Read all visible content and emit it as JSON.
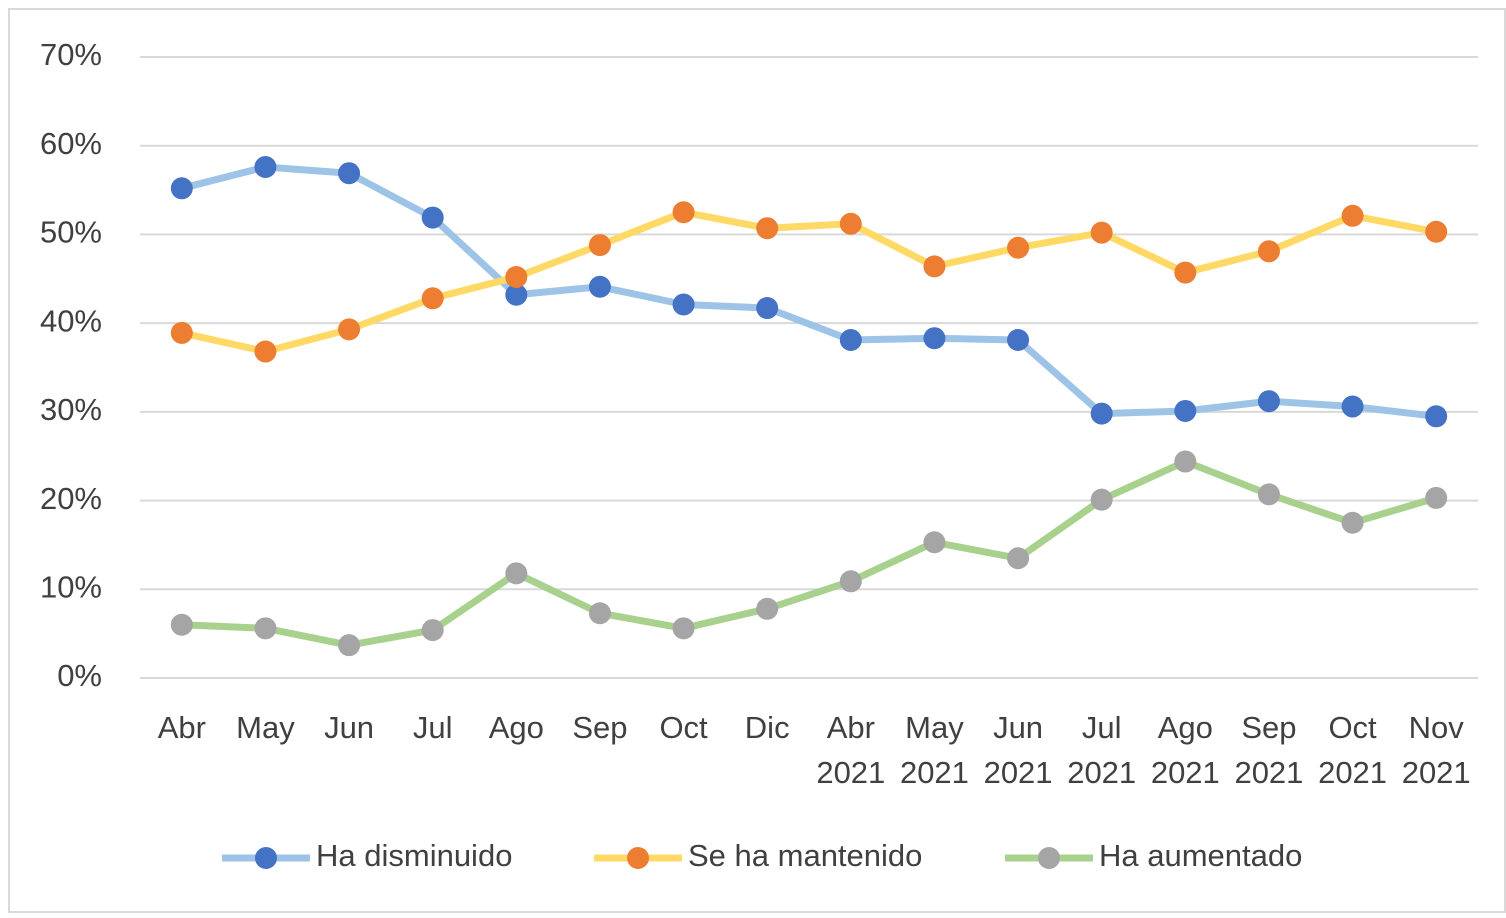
{
  "chart_data": {
    "type": "line",
    "categories": [
      "Abr",
      "May",
      "Jun",
      "Jul",
      "Ago",
      "Sep",
      "Oct",
      "Dic",
      "Abr 2021",
      "May 2021",
      "Jun 2021",
      "Jul 2021",
      "Ago 2021",
      "Sep 2021",
      "Oct 2021",
      "Nov 2021"
    ],
    "series": [
      {
        "name": "Ha disminuido",
        "color": "#9dc3e6",
        "marker_color": "#4472c4",
        "values": [
          55.2,
          57.6,
          56.9,
          51.9,
          43.2,
          44.1,
          42.1,
          41.7,
          38.1,
          38.3,
          38.1,
          29.8,
          30.1,
          31.2,
          30.6,
          29.5
        ]
      },
      {
        "name": "Se ha mantenido",
        "color": "#ffd966",
        "marker_color": "#ed7d31",
        "values": [
          38.9,
          36.8,
          39.3,
          42.8,
          45.2,
          48.8,
          52.5,
          50.7,
          51.2,
          46.4,
          48.5,
          50.2,
          45.7,
          48.1,
          52.1,
          50.3
        ]
      },
      {
        "name": "Ha aumentado",
        "color": "#a9d18e",
        "marker_color": "#a5a5a5",
        "values": [
          6.0,
          5.6,
          3.7,
          5.4,
          11.8,
          7.3,
          5.6,
          7.8,
          10.9,
          15.3,
          13.5,
          20.1,
          24.4,
          20.7,
          17.5,
          20.3
        ]
      }
    ],
    "ylim": [
      0,
      70
    ],
    "yticks": [
      {
        "value": 0,
        "label": "0%"
      },
      {
        "value": 10,
        "label": "10%"
      },
      {
        "value": 20,
        "label": "20%"
      },
      {
        "value": 30,
        "label": "30%"
      },
      {
        "value": 40,
        "label": "40%"
      },
      {
        "value": 50,
        "label": "50%"
      },
      {
        "value": 60,
        "label": "60%"
      },
      {
        "value": 70,
        "label": "70%"
      }
    ],
    "grid": true,
    "legend": "bottom"
  }
}
